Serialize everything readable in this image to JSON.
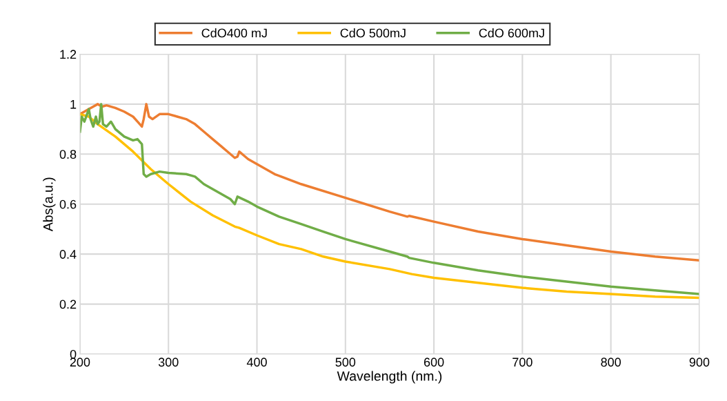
{
  "chart_data": {
    "type": "line",
    "xlabel": "Wavelength (nm.)",
    "ylabel": "Abs(a.u.)",
    "xlim": [
      200,
      900
    ],
    "xticks": [
      200,
      300,
      400,
      500,
      600,
      700,
      800,
      900
    ],
    "ylim": [
      0,
      1.2
    ],
    "yticks": [
      0,
      0.2,
      0.4,
      0.6,
      0.8,
      1,
      1.2
    ],
    "grid": true,
    "legend": "top",
    "marker": "none",
    "line_style": "solid",
    "series": [
      {
        "name": "CdO400 mJ",
        "color": "#ed7d31",
        "x": [
          200,
          205,
          210,
          215,
          220,
          225,
          230,
          240,
          250,
          260,
          265,
          270,
          272,
          275,
          278,
          282,
          290,
          300,
          310,
          320,
          330,
          340,
          350,
          360,
          370,
          375,
          378,
          380,
          390,
          400,
          420,
          450,
          500,
          550,
          570,
          572,
          600,
          650,
          700,
          750,
          800,
          850,
          900
        ],
        "values": [
          0.96,
          0.97,
          0.98,
          0.99,
          1.0,
          0.99,
          0.995,
          0.985,
          0.97,
          0.95,
          0.93,
          0.91,
          0.94,
          1.0,
          0.95,
          0.94,
          0.96,
          0.96,
          0.95,
          0.94,
          0.92,
          0.89,
          0.86,
          0.83,
          0.8,
          0.785,
          0.79,
          0.81,
          0.78,
          0.76,
          0.72,
          0.68,
          0.625,
          0.57,
          0.55,
          0.553,
          0.53,
          0.49,
          0.46,
          0.435,
          0.41,
          0.39,
          0.375
        ]
      },
      {
        "name": "CdO 500mJ",
        "color": "#ffc000",
        "x": [
          200,
          210,
          220,
          240,
          260,
          280,
          300,
          325,
          350,
          375,
          380,
          400,
          425,
          450,
          475,
          500,
          550,
          575,
          600,
          650,
          700,
          750,
          800,
          850,
          900
        ],
        "values": [
          0.96,
          0.95,
          0.92,
          0.87,
          0.81,
          0.74,
          0.68,
          0.61,
          0.555,
          0.51,
          0.505,
          0.475,
          0.44,
          0.42,
          0.39,
          0.37,
          0.34,
          0.32,
          0.305,
          0.285,
          0.265,
          0.25,
          0.24,
          0.23,
          0.225
        ]
      },
      {
        "name": "CdO 600mJ",
        "color": "#70ad47",
        "x": [
          200,
          202,
          205,
          208,
          210,
          212,
          215,
          218,
          220,
          222,
          224,
          226,
          230,
          235,
          240,
          250,
          260,
          265,
          270,
          272,
          275,
          280,
          290,
          300,
          320,
          330,
          340,
          350,
          360,
          370,
          375,
          378,
          390,
          400,
          425,
          450,
          475,
          500,
          550,
          570,
          572,
          600,
          650,
          700,
          750,
          800,
          850,
          900
        ],
        "values": [
          0.89,
          0.95,
          0.93,
          0.96,
          0.98,
          0.94,
          0.91,
          0.95,
          0.92,
          0.93,
          1.0,
          0.92,
          0.91,
          0.93,
          0.9,
          0.87,
          0.855,
          0.86,
          0.84,
          0.72,
          0.71,
          0.72,
          0.73,
          0.725,
          0.72,
          0.71,
          0.68,
          0.66,
          0.64,
          0.62,
          0.6,
          0.63,
          0.61,
          0.59,
          0.55,
          0.52,
          0.49,
          0.46,
          0.41,
          0.39,
          0.385,
          0.365,
          0.335,
          0.31,
          0.29,
          0.27,
          0.255,
          0.24
        ]
      }
    ]
  }
}
